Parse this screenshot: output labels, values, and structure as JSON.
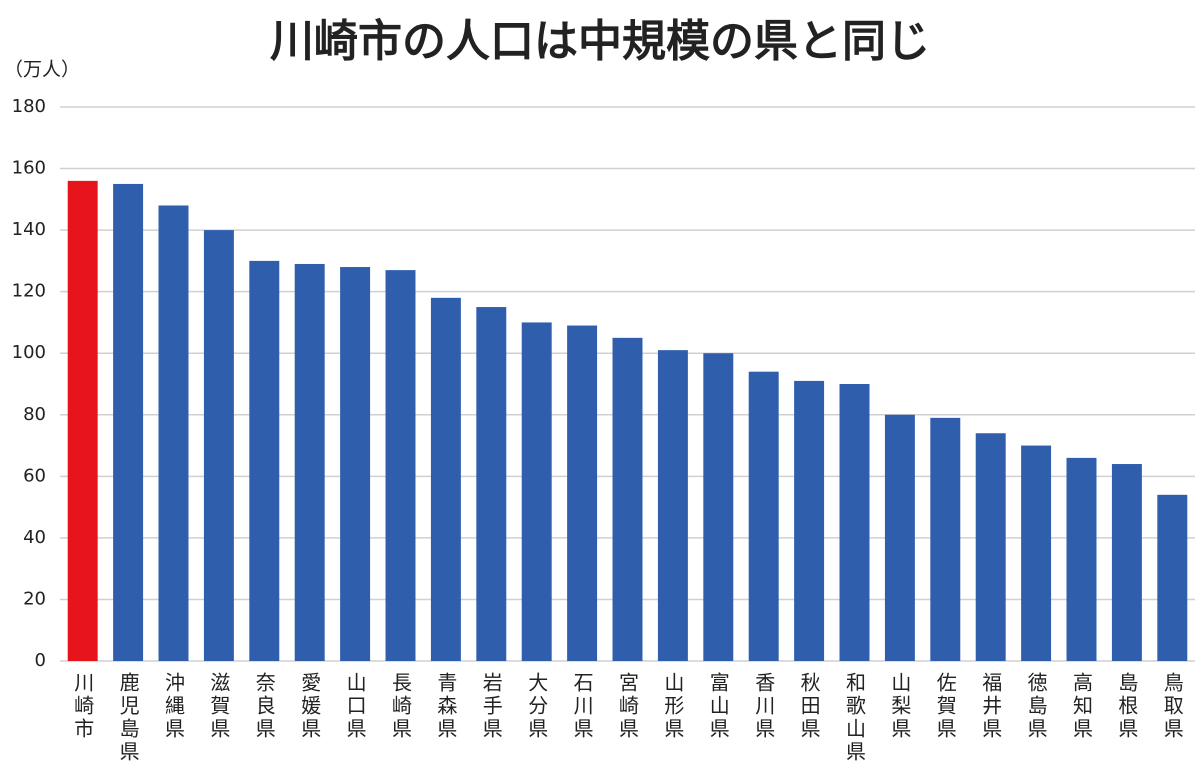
{
  "chart_data": {
    "type": "bar",
    "title": "川崎市の人口は中規模の県と同じ",
    "y_label": "（万人）",
    "categories": [
      "川崎市",
      "鹿児島県",
      "沖縄県",
      "滋賀県",
      "奈良県",
      "愛媛県",
      "山口県",
      "長崎県",
      "青森県",
      "岩手県",
      "大分県",
      "石川県",
      "宮崎県",
      "山形県",
      "富山県",
      "香川県",
      "秋田県",
      "和歌山県",
      "山梨県",
      "佐賀県",
      "福井県",
      "徳島県",
      "高知県",
      "島根県",
      "鳥取県"
    ],
    "values": [
      156,
      155,
      148,
      140,
      130,
      129,
      128,
      127,
      118,
      115,
      110,
      109,
      105,
      101,
      100,
      94,
      91,
      90,
      80,
      79,
      74,
      70,
      66,
      64,
      54
    ],
    "colors": [
      "#e8141c",
      "#2f5ead",
      "#2f5ead",
      "#2f5ead",
      "#2f5ead",
      "#2f5ead",
      "#2f5ead",
      "#2f5ead",
      "#2f5ead",
      "#2f5ead",
      "#2f5ead",
      "#2f5ead",
      "#2f5ead",
      "#2f5ead",
      "#2f5ead",
      "#2f5ead",
      "#2f5ead",
      "#2f5ead",
      "#2f5ead",
      "#2f5ead",
      "#2f5ead",
      "#2f5ead",
      "#2f5ead",
      "#2f5ead",
      "#2f5ead"
    ],
    "ylim": [
      0,
      180
    ],
    "yticks": [
      0,
      20,
      40,
      60,
      80,
      100,
      120,
      140,
      160,
      180
    ],
    "grid": true
  }
}
